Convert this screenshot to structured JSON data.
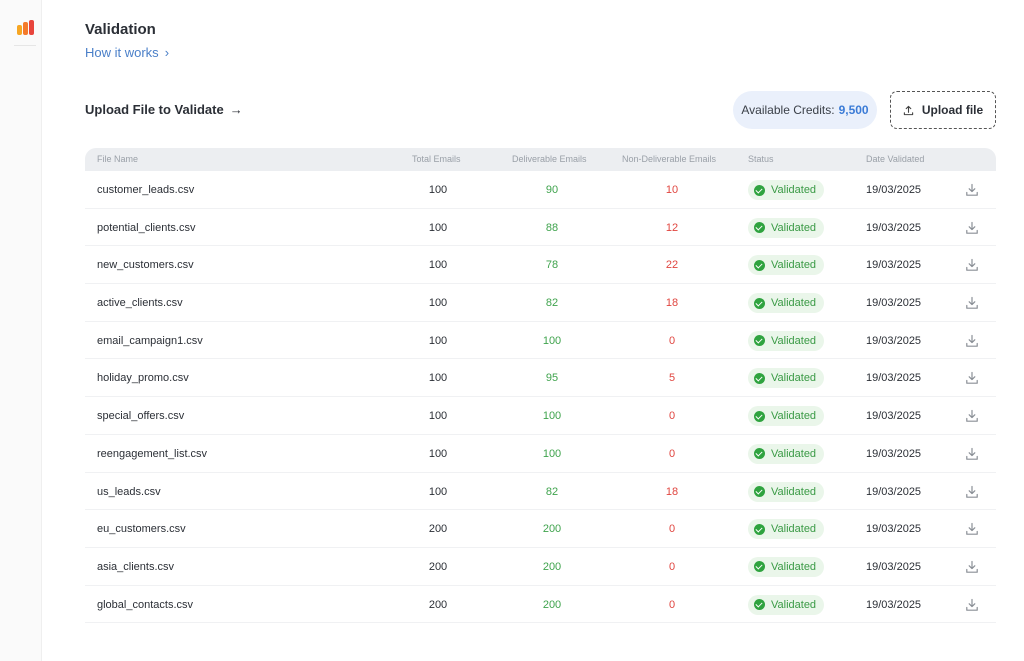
{
  "header": {
    "title": "Validation",
    "how_it_works": "How it works",
    "upload_heading": "Upload File to Validate",
    "upload_arrow": "→"
  },
  "credits": {
    "label": "Available Credits:",
    "value": "9,500"
  },
  "upload_button": {
    "label": "Upload file",
    "icon": "upload-icon"
  },
  "colors": {
    "link": "#4a7fc8",
    "deliverable": "#3fa34d",
    "non_deliverable": "#e0453f",
    "status": "#2fa33f",
    "credits_bg": "#eaf0fb"
  },
  "table": {
    "columns": [
      "File Name",
      "Total Emails",
      "Deliverable Emails",
      "Non-Deliverable Emails",
      "Status",
      "Date Validated"
    ],
    "rows": [
      {
        "file": "customer_leads.csv",
        "total": "100",
        "deliverable": "90",
        "non_deliverable": "10",
        "status": "Validated",
        "date": "19/03/2025"
      },
      {
        "file": "potential_clients.csv",
        "total": "100",
        "deliverable": "88",
        "non_deliverable": "12",
        "status": "Validated",
        "date": "19/03/2025"
      },
      {
        "file": "new_customers.csv",
        "total": "100",
        "deliverable": "78",
        "non_deliverable": "22",
        "status": "Validated",
        "date": "19/03/2025"
      },
      {
        "file": "active_clients.csv",
        "total": "100",
        "deliverable": "82",
        "non_deliverable": "18",
        "status": "Validated",
        "date": "19/03/2025"
      },
      {
        "file": "email_campaign1.csv",
        "total": "100",
        "deliverable": "100",
        "non_deliverable": "0",
        "status": "Validated",
        "date": "19/03/2025"
      },
      {
        "file": "holiday_promo.csv",
        "total": "100",
        "deliverable": "95",
        "non_deliverable": "5",
        "status": "Validated",
        "date": "19/03/2025"
      },
      {
        "file": "special_offers.csv",
        "total": "100",
        "deliverable": "100",
        "non_deliverable": "0",
        "status": "Validated",
        "date": "19/03/2025"
      },
      {
        "file": "reengagement_list.csv",
        "total": "100",
        "deliverable": "100",
        "non_deliverable": "0",
        "status": "Validated",
        "date": "19/03/2025"
      },
      {
        "file": "us_leads.csv",
        "total": "100",
        "deliverable": "82",
        "non_deliverable": "18",
        "status": "Validated",
        "date": "19/03/2025"
      },
      {
        "file": "eu_customers.csv",
        "total": "200",
        "deliverable": "200",
        "non_deliverable": "0",
        "status": "Validated",
        "date": "19/03/2025"
      },
      {
        "file": "asia_clients.csv",
        "total": "200",
        "deliverable": "200",
        "non_deliverable": "0",
        "status": "Validated",
        "date": "19/03/2025"
      },
      {
        "file": "global_contacts.csv",
        "total": "200",
        "deliverable": "200",
        "non_deliverable": "0",
        "status": "Validated",
        "date": "19/03/2025"
      }
    ]
  }
}
